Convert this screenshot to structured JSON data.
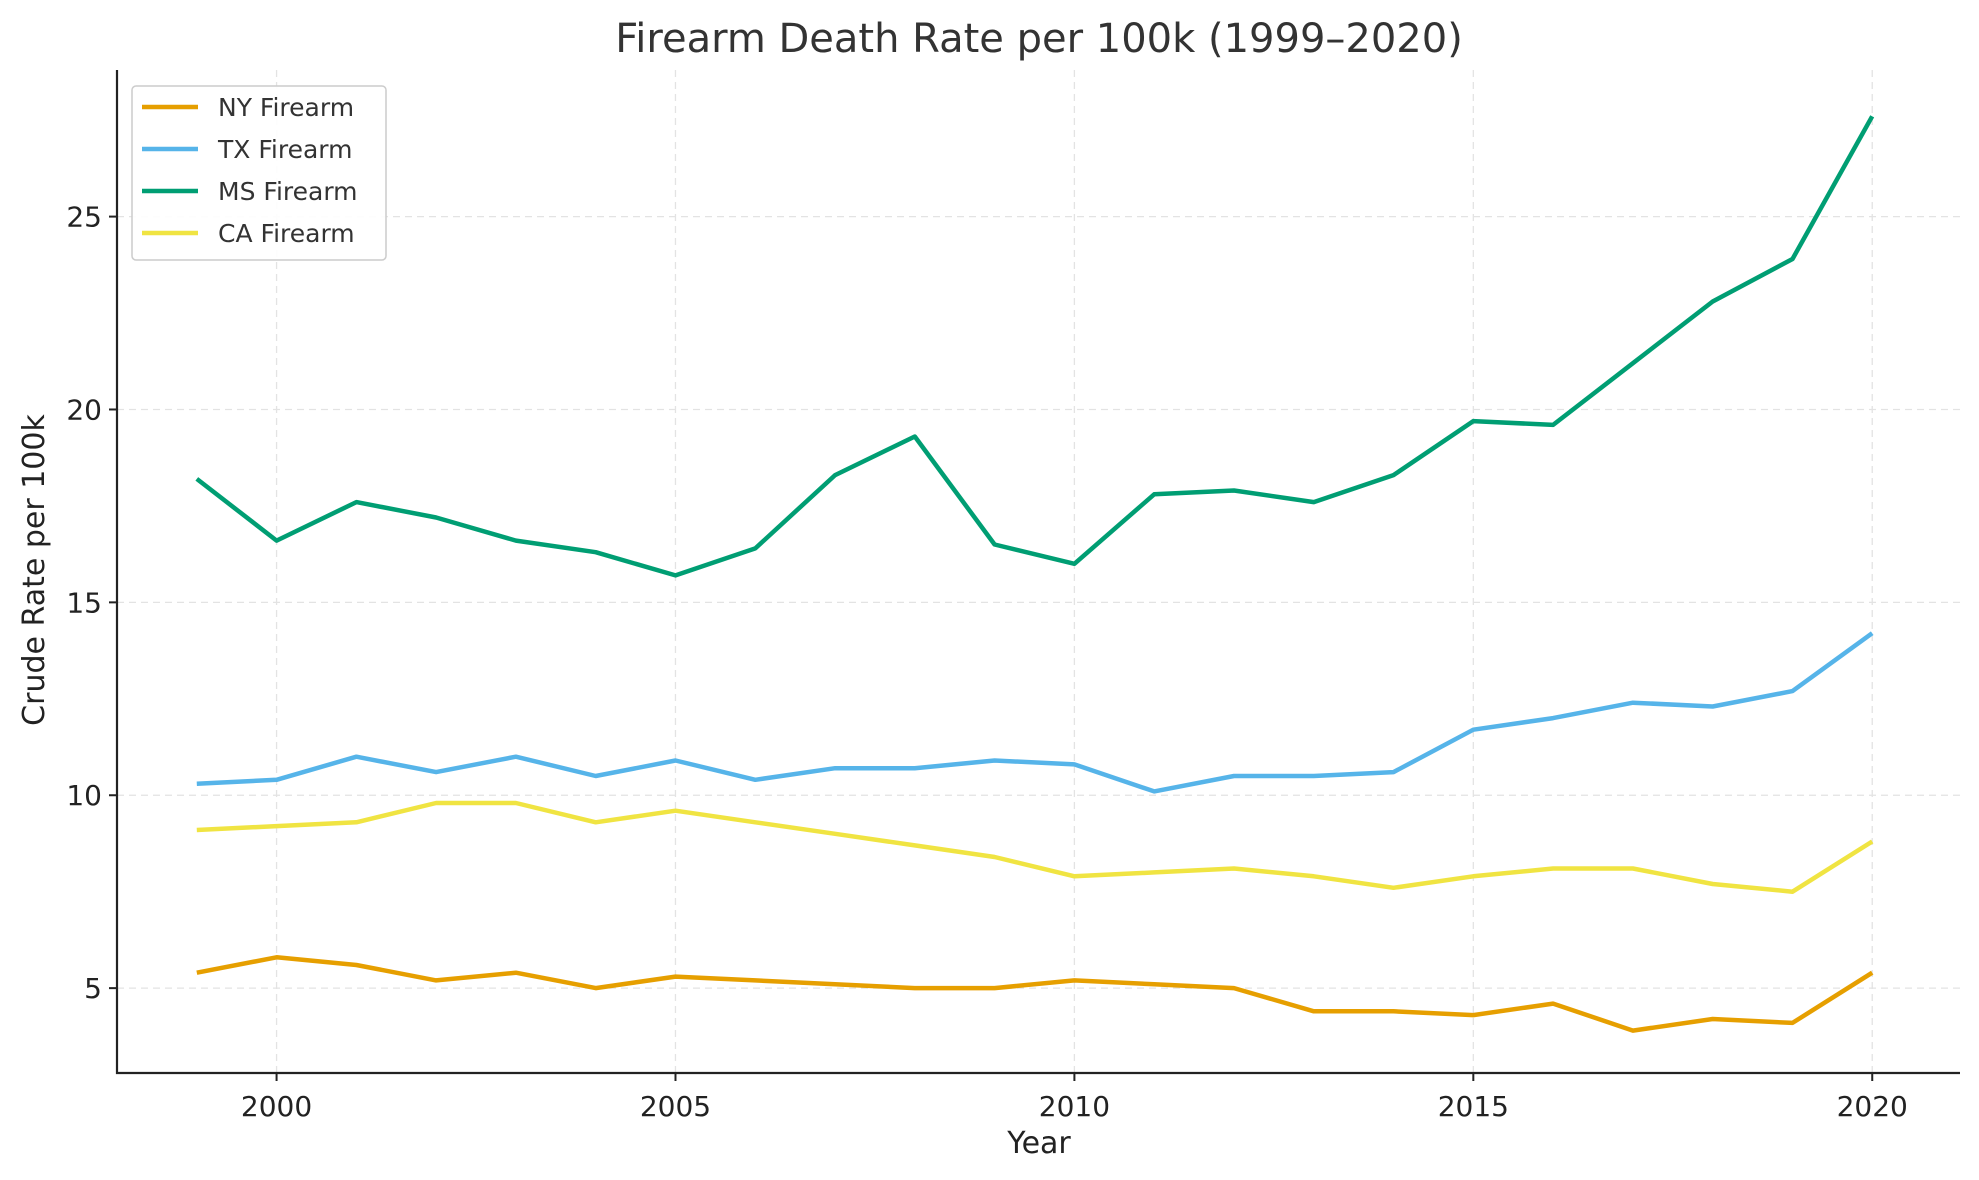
{
  "chart_data": {
    "type": "line",
    "title": "Firearm Death Rate per 100k (1999–2020)",
    "xlabel": "Year",
    "ylabel": "Crude Rate per 100k",
    "xlim": [
      1998,
      2021.1
    ],
    "ylim": [
      2.8,
      28.8
    ],
    "xticks": [
      2000,
      2005,
      2010,
      2015,
      2020
    ],
    "yticks": [
      5,
      10,
      15,
      20,
      25
    ],
    "grid": true,
    "legend_position": "upper-left",
    "x": [
      1999,
      2000,
      2001,
      2002,
      2003,
      2004,
      2005,
      2006,
      2007,
      2008,
      2009,
      2010,
      2011,
      2012,
      2013,
      2014,
      2015,
      2016,
      2017,
      2018,
      2019,
      2020
    ],
    "series": [
      {
        "name": "NY Firearm",
        "color": "#e69f00",
        "values": [
          5.4,
          5.8,
          5.6,
          5.2,
          5.4,
          5.0,
          5.3,
          5.2,
          5.1,
          5.0,
          5.0,
          5.2,
          5.1,
          5.0,
          4.4,
          4.4,
          4.3,
          4.6,
          3.9,
          4.2,
          4.1,
          5.4
        ]
      },
      {
        "name": "TX Firearm",
        "color": "#56b4e9",
        "values": [
          10.3,
          10.4,
          11.0,
          10.6,
          11.0,
          10.5,
          10.9,
          10.4,
          10.7,
          10.7,
          10.9,
          10.8,
          10.1,
          10.5,
          10.5,
          10.6,
          11.7,
          12.0,
          12.4,
          12.3,
          12.7,
          14.2
        ]
      },
      {
        "name": "MS Firearm",
        "color": "#009e73",
        "values": [
          18.2,
          16.6,
          17.6,
          17.2,
          16.6,
          16.3,
          15.7,
          16.4,
          18.3,
          19.3,
          16.5,
          16.0,
          17.8,
          17.9,
          17.6,
          18.3,
          19.7,
          19.6,
          21.2,
          22.8,
          23.9,
          27.6
        ]
      },
      {
        "name": "CA Firearm",
        "color": "#f0e442",
        "values": [
          9.1,
          9.2,
          9.3,
          9.8,
          9.8,
          9.3,
          9.6,
          9.3,
          9.0,
          8.7,
          8.4,
          7.9,
          8.0,
          8.1,
          7.9,
          7.6,
          7.9,
          8.1,
          8.1,
          7.7,
          7.5,
          8.8
        ]
      }
    ]
  }
}
